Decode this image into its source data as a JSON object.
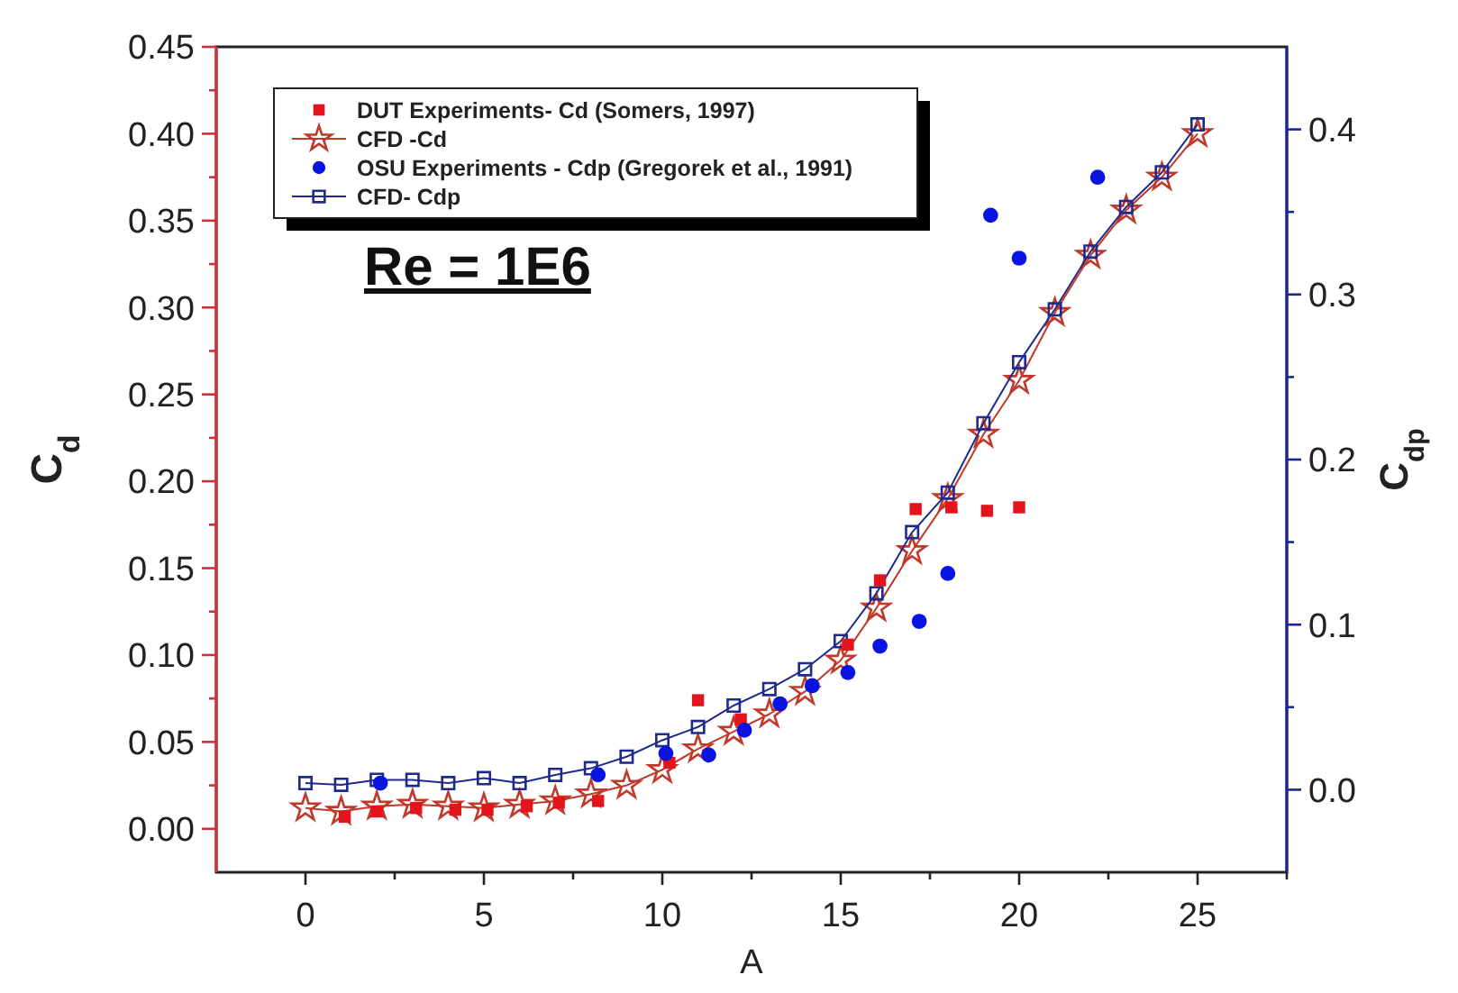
{
  "chart_data": {
    "type": "line",
    "xlabel": "A",
    "ylabel": "C$_{d}$",
    "y2label": "C$_{dp}$",
    "annotations": [
      "Re = 1E6"
    ],
    "legend": "top left",
    "grid": false,
    "xlim": [
      -2.5,
      27.5
    ],
    "xticks": [
      0,
      {
        "value": 2.5,
        "label": null
      },
      5,
      {
        "value": 7.5,
        "label": null
      },
      10,
      {
        "value": 12.5,
        "label": null
      },
      15,
      {
        "value": 17.5,
        "label": null
      },
      20,
      {
        "value": 22.5,
        "label": null
      },
      25,
      {
        "value": 27.5,
        "label": null
      }
    ],
    "ylim": [
      -0.025,
      0.45
    ],
    "yticks": [
      {
        "value": 0,
        "label": "0.00"
      },
      {
        "value": 0.025,
        "label": null
      },
      {
        "value": 0.05,
        "label": "0.05"
      },
      {
        "value": 0.075,
        "label": null
      },
      {
        "value": 0.1,
        "label": "0.10"
      },
      {
        "value": 0.125,
        "label": null
      },
      {
        "value": 0.15,
        "label": "0.15"
      },
      {
        "value": 0.175,
        "label": null
      },
      {
        "value": 0.2,
        "label": "0.20"
      },
      {
        "value": 0.225,
        "label": null
      },
      {
        "value": 0.25,
        "label": "0.25"
      },
      {
        "value": 0.275,
        "label": null
      },
      {
        "value": 0.3,
        "label": "0.30"
      },
      {
        "value": 0.325,
        "label": null
      },
      {
        "value": 0.35,
        "label": "0.35"
      },
      {
        "value": 0.375,
        "label": null
      },
      {
        "value": 0.4,
        "label": "0.40"
      },
      {
        "value": 0.425,
        "label": null
      },
      {
        "value": 0.45,
        "label": "0.45"
      }
    ],
    "y2lim": [
      -0.05,
      0.45
    ],
    "y2ticks": [
      {
        "value": 0,
        "label": "0.0"
      },
      {
        "value": 0.05,
        "label": null
      },
      0.1,
      {
        "value": 0.15,
        "label": null
      },
      0.2,
      {
        "value": 0.25,
        "label": null
      },
      0.3,
      {
        "value": 0.35,
        "label": null
      },
      0.4
    ],
    "series": [
      {
        "name": "DUT Experiments- Cd (Somers, 1997)",
        "type": "scatter",
        "marker": "square",
        "color": "#e3141b",
        "x": [
          1.1,
          2,
          3.1,
          4.2,
          5.1,
          6.2,
          7.1,
          8.2,
          10.2,
          11,
          12.2,
          15.2,
          16.1,
          17.1,
          18.1,
          19.1,
          20
        ],
        "values": [
          0.007,
          0.01,
          0.012,
          0.011,
          0.011,
          0.013,
          0.015,
          0.016,
          0.038,
          0.074,
          0.063,
          0.106,
          0.143,
          0.184,
          0.185,
          0.183,
          0.185
        ]
      },
      {
        "name": "CFD -Cd",
        "marker": "star",
        "color": "#c0392b",
        "x": [
          0,
          1,
          2,
          3,
          4,
          5,
          6,
          7,
          8,
          9,
          10,
          11,
          12,
          13,
          14,
          15,
          16,
          17,
          18,
          19,
          20,
          21,
          22,
          23,
          24,
          25
        ],
        "values": [
          0.012,
          0.01,
          0.013,
          0.014,
          0.013,
          0.012,
          0.014,
          0.016,
          0.02,
          0.025,
          0.034,
          0.046,
          0.056,
          0.066,
          0.079,
          0.097,
          0.127,
          0.16,
          0.19,
          0.227,
          0.258,
          0.297,
          0.33,
          0.356,
          0.375,
          0.4
        ]
      },
      {
        "name": "OSU Experiments - Cdp (Gregorek et al., 1991)",
        "type": "scatter",
        "marker": "circle",
        "color": "#0a14e0",
        "axis": "y2",
        "x": [
          2.1,
          8.2,
          10.1,
          11.3,
          12.3,
          13.3,
          14.2,
          15.2,
          16.1,
          17.2,
          18,
          19.2,
          20,
          22.2
        ],
        "values": [
          0.004,
          0.009,
          0.022,
          0.021,
          0.036,
          0.052,
          0.063,
          0.071,
          0.087,
          0.102,
          0.131,
          0.348,
          0.322,
          0.371
        ]
      },
      {
        "name": "CFD- Cdp",
        "marker": "square",
        "color": "#1f2a8c",
        "axis": "y2",
        "x": [
          0,
          1,
          2,
          3,
          4,
          5,
          6,
          7,
          8,
          9,
          10,
          11,
          12,
          13,
          14,
          15,
          16,
          17,
          18,
          19,
          20,
          21,
          22,
          23,
          24,
          25
        ],
        "values": [
          0.004,
          0.003,
          0.006,
          0.006,
          0.004,
          0.007,
          0.004,
          0.009,
          0.013,
          0.02,
          0.03,
          0.038,
          0.051,
          0.061,
          0.073,
          0.09,
          0.119,
          0.156,
          0.18,
          0.222,
          0.259,
          0.291,
          0.326,
          0.353,
          0.374,
          0.403
        ]
      }
    ]
  }
}
